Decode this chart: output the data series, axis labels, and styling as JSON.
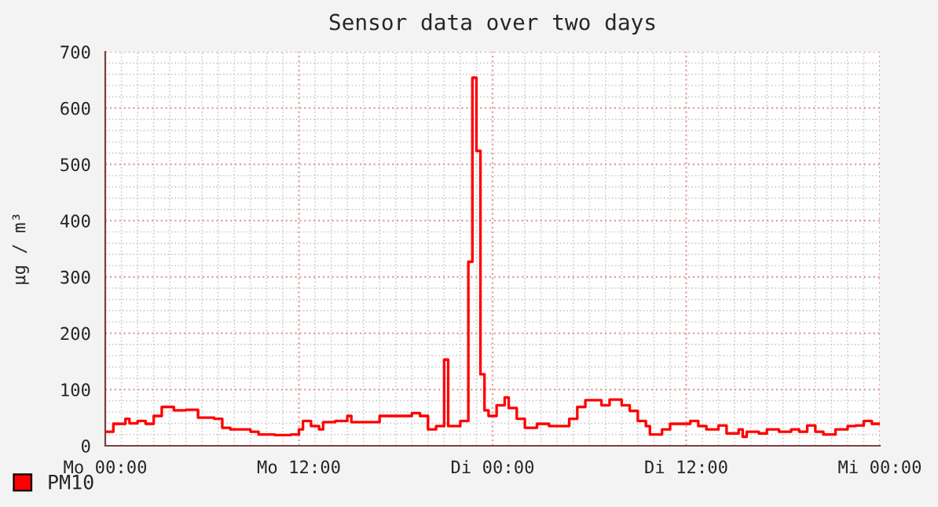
{
  "chart_data": {
    "type": "step",
    "title": "Sensor data over two days",
    "ylabel": "µg / m³",
    "categories": [
      "Mo 00:00",
      null,
      null,
      null,
      null,
      null,
      null,
      null,
      null,
      null,
      null,
      null,
      null,
      null,
      null,
      null,
      null,
      null,
      null,
      null,
      null,
      null,
      null,
      null,
      null,
      null,
      null,
      null,
      null,
      null,
      null,
      null,
      null,
      null,
      null,
      null,
      null,
      null,
      null,
      null,
      null,
      null,
      null,
      null,
      null,
      null,
      null,
      null,
      "Mo 12:00",
      null,
      null,
      null,
      null,
      null,
      null,
      null,
      null,
      null,
      null,
      null,
      null,
      null,
      null,
      null,
      null,
      null,
      null,
      null,
      null,
      null,
      null,
      null,
      null,
      null,
      null,
      null,
      null,
      null,
      null,
      null,
      null,
      null,
      null,
      null,
      null,
      null,
      null,
      null,
      null,
      null,
      null,
      null,
      null,
      null,
      null,
      null,
      "Di 00:00",
      null,
      null,
      null,
      null,
      null,
      null,
      null,
      null,
      null,
      null,
      null,
      null,
      null,
      null,
      null,
      null,
      null,
      null,
      null,
      null,
      null,
      null,
      null,
      null,
      null,
      null,
      null,
      null,
      null,
      null,
      null,
      null,
      null,
      null,
      null,
      null,
      null,
      null,
      null,
      null,
      null,
      null,
      null,
      null,
      null,
      null,
      null,
      "Di 12:00",
      null,
      null,
      null,
      null,
      null,
      null,
      null,
      null,
      null,
      null,
      null,
      null,
      null,
      null,
      null,
      null,
      null,
      null,
      null,
      null,
      null,
      null,
      null,
      null,
      null,
      null,
      null,
      null,
      null,
      null,
      null,
      null,
      null,
      null,
      null,
      null,
      null,
      null,
      null,
      null,
      null,
      null,
      null,
      null,
      null,
      null,
      null,
      "Mi 00:00"
    ],
    "series": [
      {
        "name": "PM10",
        "color": "#ff0000",
        "values": [
          25,
          25,
          39,
          39,
          39,
          48,
          40,
          40,
          44,
          44,
          39,
          39,
          53,
          53,
          69,
          69,
          69,
          63,
          63,
          63,
          64,
          64,
          64,
          50,
          50,
          50,
          50,
          48,
          48,
          32,
          32,
          29,
          29,
          29,
          29,
          29,
          25,
          25,
          20,
          20,
          20,
          20,
          19,
          19,
          19,
          19,
          20,
          20,
          29,
          44,
          44,
          35,
          35,
          29,
          42,
          42,
          42,
          44,
          44,
          44,
          53,
          42,
          42,
          42,
          42,
          42,
          42,
          42,
          53,
          53,
          53,
          53,
          53,
          53,
          53,
          53,
          58,
          58,
          53,
          53,
          29,
          29,
          35,
          35,
          153,
          35,
          35,
          35,
          44,
          44,
          327,
          654,
          524,
          127,
          63,
          53,
          53,
          72,
          72,
          86,
          67,
          67,
          48,
          48,
          32,
          32,
          32,
          39,
          39,
          39,
          35,
          35,
          35,
          35,
          35,
          48,
          48,
          69,
          69,
          81,
          81,
          81,
          81,
          72,
          72,
          82,
          82,
          82,
          72,
          72,
          62,
          62,
          44,
          44,
          35,
          20,
          20,
          20,
          29,
          29,
          39,
          39,
          39,
          39,
          39,
          44,
          44,
          35,
          35,
          29,
          29,
          29,
          36,
          36,
          22,
          22,
          22,
          29,
          16,
          25,
          25,
          25,
          22,
          22,
          29,
          29,
          29,
          25,
          25,
          25,
          29,
          29,
          25,
          25,
          36,
          36,
          25,
          25,
          20,
          20,
          20,
          29,
          29,
          29,
          35,
          35,
          36,
          36,
          44,
          44,
          39,
          39,
          39
        ]
      }
    ],
    "ylim": [
      0,
      700
    ],
    "yticks": [
      0,
      100,
      200,
      300,
      400,
      500,
      600,
      700
    ],
    "grid": true,
    "legend": "bottom left"
  }
}
